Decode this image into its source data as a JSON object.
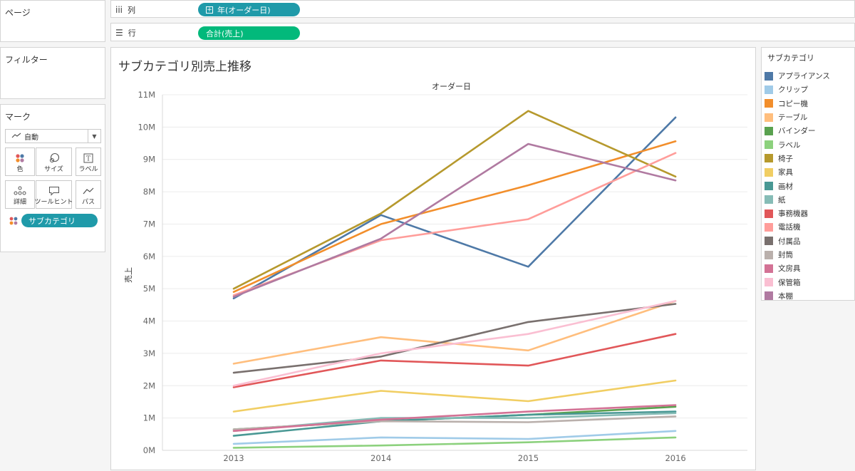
{
  "cards": {
    "pages": "ページ",
    "filters": "フィルター",
    "marks": "マーク"
  },
  "marks": {
    "type": "自動",
    "buttons": [
      "色",
      "サイズ",
      "ラベル",
      "詳細",
      "ツールヒント",
      "パス"
    ],
    "color_pill": "サブカテゴリ"
  },
  "shelves": {
    "columns_label": "列",
    "columns_pill": "年(オーダー日)",
    "rows_label": "行",
    "rows_pill": "合計(売上)"
  },
  "legend": {
    "title": "サブカテゴリ"
  },
  "chart_data": {
    "type": "line",
    "title": "サブカテゴリ別売上推移",
    "xlabel": "オーダー日",
    "ylabel": "売上",
    "x": [
      "2013",
      "2014",
      "2015",
      "2016"
    ],
    "ylim": [
      0,
      11000000
    ],
    "yticks": [
      0,
      1000000,
      2000000,
      3000000,
      4000000,
      5000000,
      6000000,
      7000000,
      8000000,
      9000000,
      10000000,
      11000000
    ],
    "ytick_labels": [
      "0M",
      "1M",
      "2M",
      "3M",
      "4M",
      "5M",
      "6M",
      "7M",
      "8M",
      "9M",
      "10M",
      "11M"
    ],
    "grid": true,
    "legend_position": "right",
    "series": [
      {
        "name": "アプライアンス",
        "color": "#4e79a7",
        "values": [
          4700000,
          7280000,
          5680000,
          10300000
        ]
      },
      {
        "name": "クリップ",
        "color": "#a0cbe8",
        "values": [
          200000,
          400000,
          350000,
          600000
        ]
      },
      {
        "name": "コピー機",
        "color": "#f28e2b",
        "values": [
          4900000,
          7000000,
          8200000,
          9560000
        ]
      },
      {
        "name": "テーブル",
        "color": "#ffbe7d",
        "values": [
          2680000,
          3500000,
          3090000,
          4620000
        ]
      },
      {
        "name": "バインダー",
        "color": "#59a14f",
        "values": [
          650000,
          900000,
          1100000,
          1350000
        ]
      },
      {
        "name": "ラベル",
        "color": "#8cd17d",
        "values": [
          80000,
          150000,
          250000,
          400000
        ]
      },
      {
        "name": "椅子",
        "color": "#b6992d",
        "values": [
          5000000,
          7330000,
          10500000,
          8470000
        ]
      },
      {
        "name": "家具",
        "color": "#f1ce63",
        "values": [
          1200000,
          1840000,
          1520000,
          2160000
        ]
      },
      {
        "name": "画材",
        "color": "#499894",
        "values": [
          450000,
          900000,
          1100000,
          1200000
        ]
      },
      {
        "name": "紙",
        "color": "#86bcb6",
        "values": [
          600000,
          1000000,
          1000000,
          1150000
        ]
      },
      {
        "name": "事務機器",
        "color": "#e15759",
        "values": [
          1950000,
          2780000,
          2620000,
          3600000
        ]
      },
      {
        "name": "電話機",
        "color": "#ff9d9a",
        "values": [
          4800000,
          6500000,
          7150000,
          9200000
        ]
      },
      {
        "name": "付属品",
        "color": "#79706e",
        "values": [
          2400000,
          2900000,
          3970000,
          4530000
        ]
      },
      {
        "name": "封筒",
        "color": "#bab0ac",
        "values": [
          650000,
          900000,
          870000,
          1050000
        ]
      },
      {
        "name": "文房具",
        "color": "#d37295",
        "values": [
          600000,
          950000,
          1200000,
          1400000
        ]
      },
      {
        "name": "保管箱",
        "color": "#fabfd2",
        "values": [
          2000000,
          3000000,
          3600000,
          4620000
        ]
      },
      {
        "name": "本棚",
        "color": "#b07aa1",
        "values": [
          4750000,
          6550000,
          9480000,
          8350000
        ]
      }
    ]
  }
}
